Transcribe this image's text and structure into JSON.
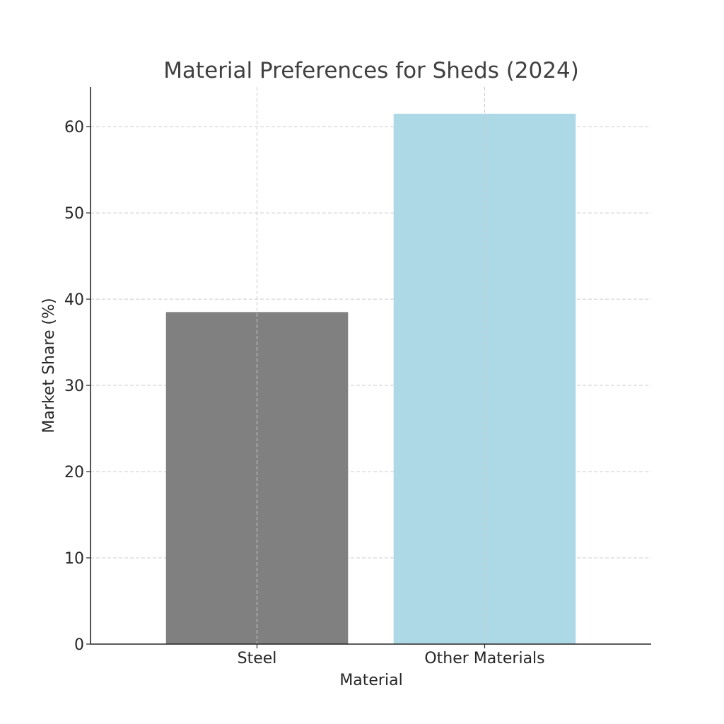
{
  "chart_data": {
    "type": "bar",
    "title": "Material Preferences for Sheds (2024)",
    "xlabel": "Material",
    "ylabel": "Market Share (%)",
    "categories": [
      "Steel",
      "Other Materials"
    ],
    "values": [
      38.5,
      61.5
    ],
    "colors": [
      "#808080",
      "#add8e6"
    ],
    "ylim": [
      0,
      64.6
    ],
    "yticks": [
      0,
      10,
      20,
      30,
      40,
      50,
      60
    ],
    "grid": true,
    "grid_style": "dashed",
    "legend": "none"
  }
}
